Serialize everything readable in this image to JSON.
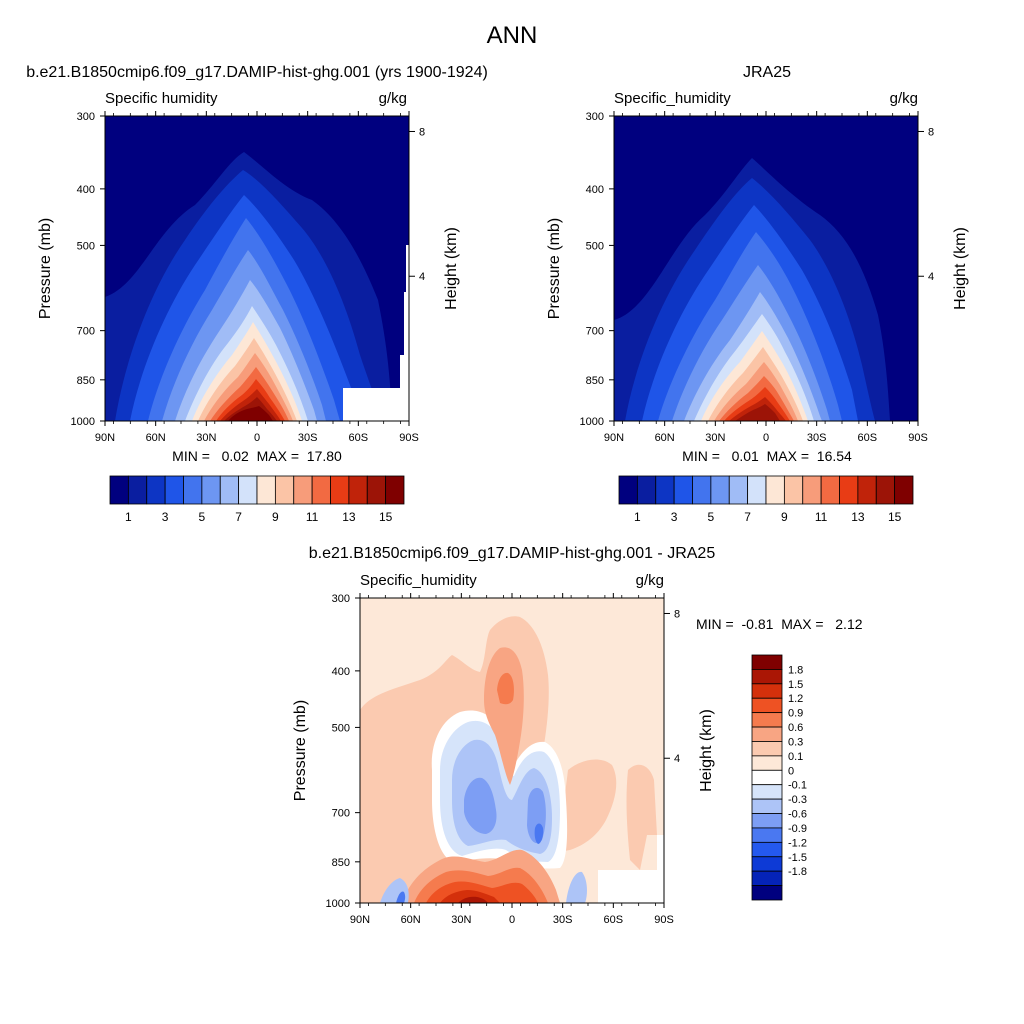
{
  "page_title": "ANN",
  "panels": {
    "model": {
      "title": "b.e21.B1850cmip6.f09_g17.DAMIP-hist-ghg.001 (yrs 1900-1924)",
      "left_label": "Specific humidity",
      "right_label": "g/kg",
      "stats": "MIN =   0.02  MAX =  17.80"
    },
    "obs": {
      "title": "JRA25",
      "left_label": "Specific_humidity",
      "right_label": "g/kg",
      "stats": "MIN =   0.01  MAX =  16.54"
    },
    "diff": {
      "title": "b.e21.B1850cmip6.f09_g17.DAMIP-hist-ghg.001 - JRA25",
      "left_label": "Specific_humidity",
      "right_label": "g/kg",
      "stats": "MIN =  -0.81  MAX =   2.12"
    }
  },
  "axes": {
    "ylabel": "Pressure (mb)",
    "y2label": "Height (km)",
    "pressure_ticks": [
      "300",
      "400",
      "500",
      "700",
      "850",
      "1000"
    ],
    "height_ticks": [
      "8",
      "4"
    ],
    "lat_ticks": [
      "90N",
      "60N",
      "30N",
      "0",
      "30S",
      "60S",
      "90S"
    ]
  },
  "colors": {
    "abs_scale": [
      "#00007f",
      "#0a1ea0",
      "#0d35c4",
      "#1f55e8",
      "#4274ee",
      "#6d96f2",
      "#a0bcf6",
      "#d3e2fa",
      "#fde7d6",
      "#fbc4a6",
      "#f79c7a",
      "#f26a42",
      "#e83c15",
      "#c0230a",
      "#9c1407",
      "#7f0000"
    ],
    "diff_scale": [
      "#00007f",
      "#0523b8",
      "#0d3ad6",
      "#2459ee",
      "#4a78f1",
      "#7d9ef4",
      "#adc4f7",
      "#d6e4fa",
      "#ffffff",
      "#fde8d8",
      "#fbcab0",
      "#f8a583",
      "#f57b4e",
      "#ee5223",
      "#d4300b",
      "#aa1605",
      "#7f0000"
    ]
  },
  "chart_data": [
    {
      "type": "heatmap",
      "title": "b.e21.B1850cmip6.f09_g17.DAMIP-hist-ghg.001 (yrs 1900-1924)",
      "variable": "Specific humidity",
      "units": "g/kg",
      "xlabel": "",
      "ylabel": "Pressure (mb)",
      "y2label": "Height (km)",
      "x": [
        "90N",
        "60N",
        "30N",
        "0",
        "30S",
        "60S",
        "90S"
      ],
      "y": [
        300,
        400,
        500,
        700,
        850,
        1000
      ],
      "y_log_scale": true,
      "contour_levels": [
        1,
        2,
        3,
        4,
        5,
        6,
        7,
        8,
        9,
        10,
        11,
        12,
        13,
        14,
        15
      ],
      "colorbar_labels": [
        "1",
        "3",
        "5",
        "7",
        "9",
        "11",
        "13",
        "15"
      ],
      "min": 0.02,
      "max": 17.8
    },
    {
      "type": "heatmap",
      "title": "JRA25",
      "variable": "Specific_humidity",
      "units": "g/kg",
      "xlabel": "",
      "ylabel": "Pressure (mb)",
      "y2label": "Height (km)",
      "x": [
        "90N",
        "60N",
        "30N",
        "0",
        "30S",
        "60S",
        "90S"
      ],
      "y": [
        300,
        400,
        500,
        700,
        850,
        1000
      ],
      "y_log_scale": true,
      "contour_levels": [
        1,
        2,
        3,
        4,
        5,
        6,
        7,
        8,
        9,
        10,
        11,
        12,
        13,
        14,
        15
      ],
      "colorbar_labels": [
        "1",
        "3",
        "5",
        "7",
        "9",
        "11",
        "13",
        "15"
      ],
      "min": 0.01,
      "max": 16.54
    },
    {
      "type": "heatmap",
      "title": "b.e21.B1850cmip6.f09_g17.DAMIP-hist-ghg.001 - JRA25",
      "variable": "Specific_humidity",
      "units": "g/kg",
      "xlabel": "",
      "ylabel": "Pressure (mb)",
      "y2label": "Height (km)",
      "x": [
        "90N",
        "60N",
        "30N",
        "0",
        "30S",
        "60S",
        "90S"
      ],
      "y": [
        300,
        400,
        500,
        700,
        850,
        1000
      ],
      "y_log_scale": true,
      "contour_levels": [
        -1.8,
        -1.5,
        -1.2,
        -0.9,
        -0.6,
        -0.3,
        -0.1,
        0,
        0.1,
        0.3,
        0.6,
        0.9,
        1.2,
        1.5,
        1.8
      ],
      "colorbar_labels": [
        "1.8",
        "1.5",
        "1.2",
        "0.9",
        "0.6",
        "0.3",
        "0.1",
        "0",
        "-0.1",
        "-0.3",
        "-0.6",
        "-0.9",
        "-1.2",
        "-1.5",
        "-1.8"
      ],
      "min": -0.81,
      "max": 2.12
    }
  ]
}
